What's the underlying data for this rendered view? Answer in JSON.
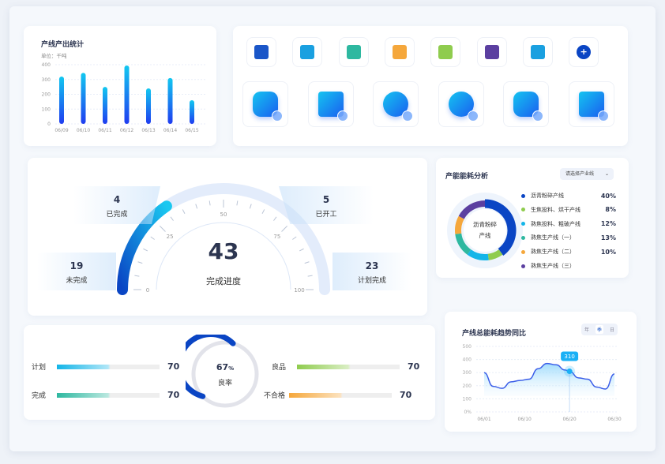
{
  "bar_panel": {
    "title": "产线产出统计",
    "unit": "单位：千吨"
  },
  "chart_data": [
    {
      "type": "bar",
      "title": "产线产出统计",
      "categories": [
        "06/09",
        "06/10",
        "06/11",
        "06/12",
        "06/13",
        "06/14",
        "06/15"
      ],
      "values": [
        320,
        345,
        250,
        395,
        240,
        310,
        160
      ],
      "ylim": [
        0,
        400
      ],
      "yticks": [
        0,
        100,
        200,
        300,
        400
      ],
      "grid": true,
      "color": "#1a7cf5"
    },
    {
      "type": "pie",
      "title": "产能能耗分析",
      "center_label": "沥青粉碎产线",
      "slices": [
        {
          "name": "沥青粉碎产线",
          "value": 40,
          "label": "40%",
          "color": "#0a45c4"
        },
        {
          "name": "生焦投料、烘干产线",
          "value": 8,
          "label": "8%",
          "color": "#8fcc4e"
        },
        {
          "name": "熟焦投料、粗破产线",
          "value": 12,
          "label": "12%",
          "color": "#13b5e8"
        },
        {
          "name": "熟焦生产线（一）",
          "value": 13,
          "label": "13%",
          "color": "#2eb8a0"
        },
        {
          "name": "熟焦生产线（二）",
          "value": 10,
          "label": "10%",
          "color": "#f5a73b"
        },
        {
          "name": "熟焦生产线（三）",
          "value": 17,
          "label": "",
          "color": "#5b3fa0"
        }
      ]
    },
    {
      "type": "area",
      "title": "产线总能耗趋势同比",
      "xticks": [
        "06/01",
        "06/10",
        "06/20",
        "06/30"
      ],
      "ytick_labels": [
        "0%",
        "100",
        "200",
        "300",
        "400",
        "500"
      ],
      "ylim": [
        0,
        500
      ],
      "x": [
        1,
        3,
        5,
        7,
        9,
        11,
        13,
        15,
        17,
        19,
        20,
        22,
        24,
        26,
        28,
        30
      ],
      "values": [
        300,
        195,
        180,
        230,
        240,
        250,
        330,
        370,
        360,
        320,
        310,
        260,
        250,
        190,
        175,
        290
      ],
      "tooltip": {
        "x": "06/20",
        "value": "310"
      },
      "color": "#3b5ee8"
    }
  ],
  "icons_row1": [
    "document-settings-icon",
    "worker-star-icon",
    "box-wrench-icon",
    "table-search-icon",
    "report-network-icon",
    "presentation-chart-icon",
    "cube-add-icon",
    "add-circle-icon"
  ],
  "icons_row2": [
    "document-edit-icon",
    "shield-user-icon",
    "database-search-icon",
    "calendar-hourglass-icon",
    "mail-edit-icon",
    "folder-layers-icon"
  ],
  "gauge": {
    "value": 43,
    "label": "完成进度",
    "ticks": [
      "0",
      "25",
      "50",
      "75",
      "100"
    ],
    "cards": [
      {
        "value": "4",
        "label": "已完成"
      },
      {
        "value": "5",
        "label": "已开工"
      },
      {
        "value": "19",
        "label": "未完成"
      },
      {
        "value": "23",
        "label": "计划完成"
      }
    ]
  },
  "energy": {
    "title": "产能能耗分析",
    "select": "请选择产业线",
    "center": [
      "沥青粉碎",
      "产线"
    ]
  },
  "quality": {
    "rate": "67",
    "unit": "%",
    "rate_label": "良率",
    "rate_fraction": 0.67,
    "rows": [
      {
        "label": "计划",
        "value": "70",
        "color": "#13b5e8"
      },
      {
        "label": "完成",
        "value": "70",
        "color": "#2eb8a0"
      },
      {
        "label": "良品",
        "value": "70",
        "color": "#8fcc4e"
      },
      {
        "label": "不合格",
        "value": "70",
        "color": "#f5a73b"
      }
    ]
  },
  "trend": {
    "title": "产线总能耗趋势同比",
    "tabs": [
      "年",
      "季",
      "日"
    ],
    "active_tab": 1
  }
}
